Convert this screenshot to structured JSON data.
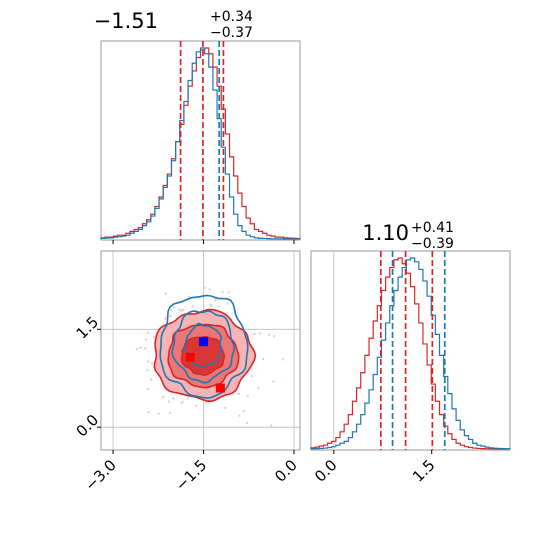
{
  "chart_data": {
    "type": "corner",
    "series_colors": {
      "blue": "#1f77b4",
      "red": "#d62728"
    },
    "marker_colors": {
      "blue": "#0000ff",
      "red": "#ff0000"
    },
    "params": [
      {
        "title": {
          "base": "−1.51",
          "sup": "+0.34",
          "sub": "−0.37"
        },
        "range": [
          -3.2,
          0.1
        ],
        "ticks": [
          {
            "value": -3.0,
            "label": "−3.0"
          },
          {
            "value": -1.5,
            "label": "−1.5"
          },
          {
            "value": 0.0,
            "label": "0.0"
          }
        ],
        "quantiles_red": [
          -1.88,
          -1.51,
          -1.17
        ],
        "quantiles_blue": [
          -1.24
        ],
        "hist_red": [
          0.6,
          1,
          1,
          1.5,
          2,
          2,
          3,
          4,
          5,
          6,
          8,
          10,
          13,
          17,
          22,
          28,
          34,
          42,
          51,
          60,
          70,
          80,
          88,
          95,
          99,
          100,
          97,
          90,
          80,
          68,
          55,
          43,
          33,
          24,
          17,
          11,
          8,
          5,
          4,
          3,
          2,
          1.5,
          1,
          1,
          0.6,
          0.5,
          0.4,
          0.3
        ],
        "hist_blue": [
          0.3,
          0.5,
          0.6,
          1,
          1.2,
          1.5,
          2,
          3,
          4,
          5,
          7,
          9,
          12,
          16,
          21,
          27,
          33,
          41,
          51,
          62,
          72,
          83,
          92,
          98,
          100,
          97,
          90,
          78,
          63,
          48,
          34,
          22,
          13,
          7,
          4,
          2,
          1.2,
          0.6,
          0.4,
          0.3,
          0.2,
          0.1,
          0.1,
          0.1,
          0.05,
          0.05,
          0.05,
          0.05
        ]
      },
      {
        "title": {
          "base": "1.10",
          "sup": "+0.41",
          "sub": "−0.39"
        },
        "range": [
          -0.35,
          2.7
        ],
        "ticks": [
          {
            "value": 0.0,
            "label": "0.0"
          },
          {
            "value": 1.5,
            "label": "1.5"
          }
        ],
        "quantiles_red": [
          0.72,
          1.1,
          1.51
        ],
        "quantiles_blue": [
          0.9,
          1.7
        ],
        "hist_red": [
          0.6,
          1,
          1.5,
          2,
          3,
          4,
          6,
          9,
          13,
          18,
          25,
          32,
          40,
          49,
          58,
          67,
          75,
          83,
          90,
          95,
          99,
          100,
          97,
          92,
          85,
          76,
          66,
          55,
          44,
          34,
          25,
          18,
          12,
          8,
          5,
          3,
          2,
          1.2,
          0.8,
          0.5,
          0.3,
          0.2,
          0.1,
          0.1,
          0.05,
          0.05,
          0.05,
          0.05
        ],
        "hist_blue": [
          0.1,
          0.2,
          0.3,
          0.5,
          0.8,
          1.2,
          2,
          3,
          4,
          6,
          9,
          13,
          18,
          24,
          31,
          39,
          48,
          57,
          66,
          75,
          83,
          90,
          95,
          99,
          100,
          98,
          94,
          88,
          80,
          70,
          60,
          49,
          38,
          29,
          21,
          15,
          10,
          7,
          5,
          3,
          2,
          1.5,
          1,
          0.6,
          0.4,
          0.3,
          0.2,
          0.1
        ]
      }
    ],
    "scatter2d": {
      "red_center": [
        -1.51,
        1.1
      ],
      "red_levels": [
        [
          0.82,
          0.68
        ],
        [
          0.58,
          0.48
        ],
        [
          0.35,
          0.29
        ]
      ],
      "blue_center": [
        -1.5,
        1.25
      ],
      "blue_levels": [
        [
          0.72,
          0.78
        ],
        [
          0.5,
          0.54
        ],
        [
          0.3,
          0.32
        ]
      ],
      "markers_red": [
        [
          -1.72,
          1.07
        ],
        [
          -1.22,
          0.6
        ]
      ],
      "markers_blue": [
        [
          -1.5,
          1.31
        ]
      ]
    }
  }
}
